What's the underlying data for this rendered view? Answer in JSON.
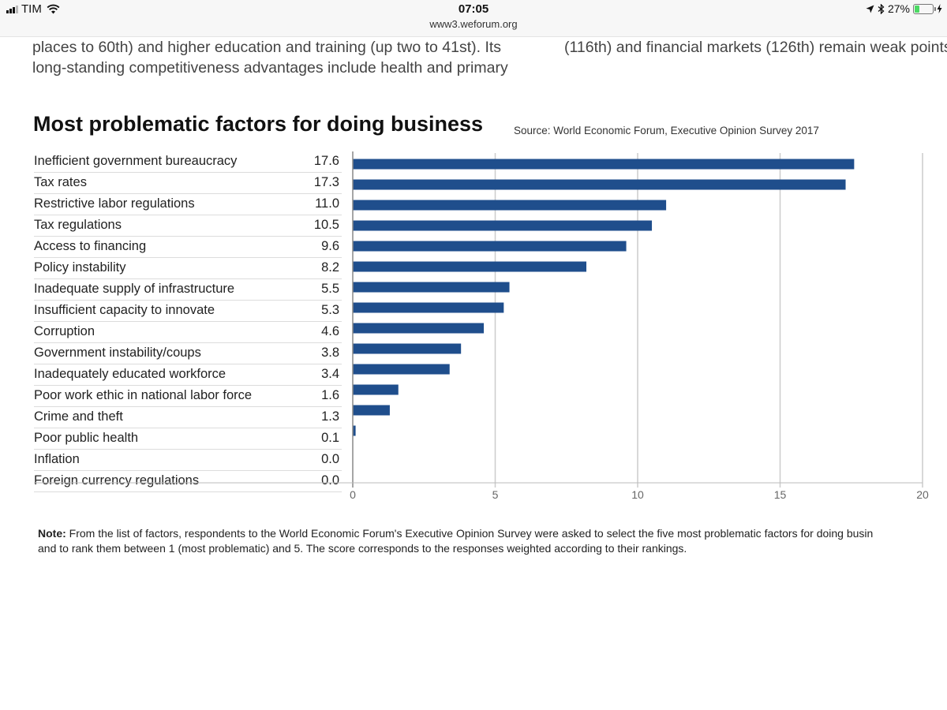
{
  "status_bar": {
    "carrier": "TIM",
    "time": "07:05",
    "url": "www3.weforum.org",
    "battery_percent": "27%",
    "battery_level": 0.27
  },
  "article": {
    "left_lines": [
      "places to 60th) and higher education and training (up two to 41st). Its",
      "long-standing competitiveness advantages include health and primary"
    ],
    "right_lines": [
      "(116th) and financial markets (126th) remain weak points"
    ]
  },
  "chart_data": {
    "type": "bar",
    "orientation": "horizontal",
    "title": "Most problematic factors for doing business",
    "source": "Source: World Economic Forum, Executive Opinion Survey 2017",
    "categories": [
      "Inefficient government bureaucracy",
      "Tax rates",
      "Restrictive labor regulations",
      "Tax regulations",
      "Access to financing",
      "Policy instability",
      "Inadequate supply of infrastructure",
      "Insufficient capacity to innovate",
      "Corruption",
      "Government instability/coups",
      "Inadequately educated workforce",
      "Poor work ethic in national labor force",
      "Crime and theft",
      "Poor public health",
      "Inflation",
      "Foreign currency regulations"
    ],
    "values": [
      17.6,
      17.3,
      11.0,
      10.5,
      9.6,
      8.2,
      5.5,
      5.3,
      4.6,
      3.8,
      3.4,
      1.6,
      1.3,
      0.1,
      0.0,
      0.0
    ],
    "value_labels": [
      "17.6",
      "17.3",
      "11.0",
      "10.5",
      "9.6",
      "8.2",
      "5.5",
      "5.3",
      "4.6",
      "3.8",
      "3.4",
      "1.6",
      "1.3",
      "0.1",
      "0.0",
      "0.0"
    ],
    "xlim": [
      0,
      20
    ],
    "xticks": [
      0,
      5,
      10,
      15,
      20
    ],
    "xtick_labels": [
      "0",
      "5",
      "10",
      "15",
      "20"
    ],
    "grid": true,
    "bar_color": "#1f4e8c",
    "grid_color": "#cccccc"
  },
  "note": {
    "label": "Note:",
    "line1": " From the list of factors, respondents to the World Economic Forum's Executive Opinion Survey were asked to select the five most problematic factors for doing busin",
    "line2": "and to rank them between 1 (most problematic) and 5. The score corresponds to the responses weighted according to their rankings."
  }
}
